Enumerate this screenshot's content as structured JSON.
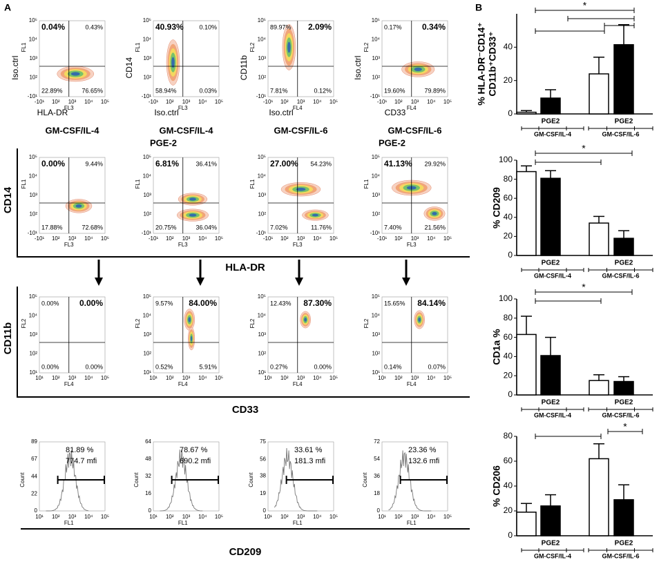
{
  "panel_labels": {
    "a": "A",
    "b": "B"
  },
  "panel_a": {
    "log_ticks_neg": [
      "-10¹",
      "10²",
      "10³",
      "10⁴",
      "10⁵"
    ],
    "log_ticks_pos": [
      "10¹",
      "10²",
      "10³",
      "10⁴",
      "10⁵"
    ],
    "row1": [
      {
        "tl": "0.04%",
        "tr": "0.43%",
        "bl": "22.89%",
        "br": "76.65%",
        "bold": "tl",
        "ylabel": "Iso.ctrl",
        "ysub": "FL1",
        "xlabel": "HLA-DR",
        "xsub": "FL3"
      },
      {
        "tl": "40.93%",
        "tr": "0.10%",
        "bl": "58.94%",
        "br": "0.03%",
        "bold": "tl",
        "ylabel": "CD14",
        "ysub": "FL1",
        "xlabel": "Iso.ctrl",
        "xsub": "FL3"
      },
      {
        "tl": "89.97%",
        "tr": "2.09%",
        "bl": "7.81%",
        "br": "0.12%",
        "bold": "tr",
        "ylabel": "CD11b",
        "ysub": "FL2",
        "xlabel": "Iso.ctrl",
        "xsub": "FL4"
      },
      {
        "tl": "0.17%",
        "tr": "0.34%",
        "bl": "19.60%",
        "br": "79.89%",
        "bold": "tr",
        "ylabel": "Iso.ctrl",
        "ysub": "FL2",
        "xlabel": "CD33",
        "xsub": "FL4"
      }
    ],
    "conditions": [
      [
        "GM-CSF/IL-4"
      ],
      [
        "GM-CSF/IL-4",
        "PGE-2"
      ],
      [
        "GM-CSF/IL-6"
      ],
      [
        "GM-CSF/IL-6",
        "PGE-2"
      ]
    ],
    "row2_label": "CD14",
    "row2_bottom": "HLA-DR",
    "row2": [
      {
        "tl": "0.00%",
        "tr": "9.44%",
        "bl": "17.88%",
        "br": "72.68%",
        "bold": "tl",
        "ysub": "FL1",
        "xsub": "FL3"
      },
      {
        "tl": "6.81%",
        "tr": "36.41%",
        "bl": "20.75%",
        "br": "36.04%",
        "bold": "tl",
        "ysub": "FL1",
        "xsub": "FL3"
      },
      {
        "tl": "27.00%",
        "tr": "54.23%",
        "bl": "7.02%",
        "br": "11.76%",
        "bold": "tl",
        "ysub": "FL1",
        "xsub": "FL3"
      },
      {
        "tl": "41.13%",
        "tr": "29.92%",
        "bl": "7.40%",
        "br": "21.56%",
        "bold": "tl",
        "ysub": "FL1",
        "xsub": "FL3"
      }
    ],
    "row3_label": "CD11b",
    "row3_bottom": "CD33",
    "row3": [
      {
        "tl": "0.00%",
        "tr": "0.00%",
        "bl": "0.00%",
        "br": "0.00%",
        "bold": "tr",
        "ysub": "FL2",
        "xsub": "FL4"
      },
      {
        "tl": "9.57%",
        "tr": "84.00%",
        "bl": "0.52%",
        "br": "5.91%",
        "bold": "tr",
        "ysub": "FL2",
        "xsub": "FL4"
      },
      {
        "tl": "12.43%",
        "tr": "87.30%",
        "bl": "0.27%",
        "br": "0.00%",
        "bold": "tr",
        "ysub": "FL2",
        "xsub": "FL4"
      },
      {
        "tl": "15.65%",
        "tr": "84.14%",
        "bl": "0.14%",
        "br": "0.07%",
        "bold": "tr",
        "ysub": "FL2",
        "xsub": "FL4"
      }
    ],
    "row4_bottom": "CD209",
    "histograms": [
      {
        "yticks": [
          0,
          22,
          44,
          67,
          89
        ],
        "percent": "81.89 %",
        "mfi": "774.7 mfi",
        "ylabel": "Count",
        "xsub": "FL1"
      },
      {
        "yticks": [
          0,
          16,
          32,
          48,
          64
        ],
        "percent": "78.67 %",
        "mfi": "690.2 mfi",
        "ylabel": "Count",
        "xsub": "FL1"
      },
      {
        "yticks": [
          0,
          19,
          38,
          56,
          75
        ],
        "percent": "33.61 %",
        "mfi": "181.3 mfi",
        "ylabel": "Count",
        "xsub": "FL1"
      },
      {
        "yticks": [
          0,
          18,
          36,
          54,
          72
        ],
        "percent": "23.36 %",
        "mfi": "132.6 mfi",
        "ylabel": "Count",
        "xsub": "FL1"
      }
    ]
  },
  "chart_data": [
    {
      "type": "bar",
      "ylabel": [
        "% HLA-DR⁻CD14⁺",
        "CD11b⁺CD33⁺"
      ],
      "categories": [
        null,
        "PGE2",
        null,
        "PGE2"
      ],
      "groups": [
        "GM-CSF/IL-4",
        "GM-CSF/IL-6"
      ],
      "values": [
        1,
        9.5,
        24,
        41.5
      ],
      "errors": [
        1,
        5,
        10,
        12
      ],
      "colors": [
        "#ffffff",
        "#000000",
        "#ffffff",
        "#000000"
      ],
      "ylim": [
        0,
        60
      ],
      "yticks": [
        0,
        20,
        40
      ],
      "annotations": [
        "*"
      ]
    },
    {
      "type": "bar",
      "ylabel": [
        "% CD209"
      ],
      "categories": [
        null,
        "PGE2",
        null,
        "PGE2"
      ],
      "groups": [
        "GM-CSF/IL-4",
        "GM-CSF/IL-6"
      ],
      "values": [
        88,
        81,
        34,
        18
      ],
      "errors": [
        6,
        8,
        7,
        8
      ],
      "colors": [
        "#ffffff",
        "#000000",
        "#ffffff",
        "#000000"
      ],
      "ylim": [
        0,
        100
      ],
      "yticks": [
        0,
        20,
        40,
        60,
        80,
        100
      ],
      "annotations": [
        "*"
      ]
    },
    {
      "type": "bar",
      "ylabel": [
        "CD1a %"
      ],
      "categories": [
        null,
        "PGE2",
        null,
        "PGE2"
      ],
      "groups": [
        "GM-CSF/IL-4",
        "GM-CSF/IL-6"
      ],
      "values": [
        63,
        41,
        15,
        14
      ],
      "errors": [
        19,
        19,
        6,
        5
      ],
      "colors": [
        "#ffffff",
        "#000000",
        "#ffffff",
        "#000000"
      ],
      "ylim": [
        0,
        100
      ],
      "yticks": [
        0,
        20,
        40,
        60,
        80,
        100
      ],
      "annotations": [
        "*"
      ]
    },
    {
      "type": "bar",
      "ylabel": [
        "% CD206"
      ],
      "categories": [
        null,
        "PGE2",
        null,
        "PGE2"
      ],
      "groups": [
        "GM-CSF/IL-4",
        "GM-CSF/IL-6"
      ],
      "values": [
        19,
        24,
        62,
        29
      ],
      "errors": [
        7,
        9,
        12,
        12
      ],
      "colors": [
        "#ffffff",
        "#000000",
        "#ffffff",
        "#000000"
      ],
      "ylim": [
        0,
        80
      ],
      "yticks": [
        0,
        20,
        40,
        60,
        80
      ],
      "annotations": [
        "*"
      ]
    }
  ]
}
